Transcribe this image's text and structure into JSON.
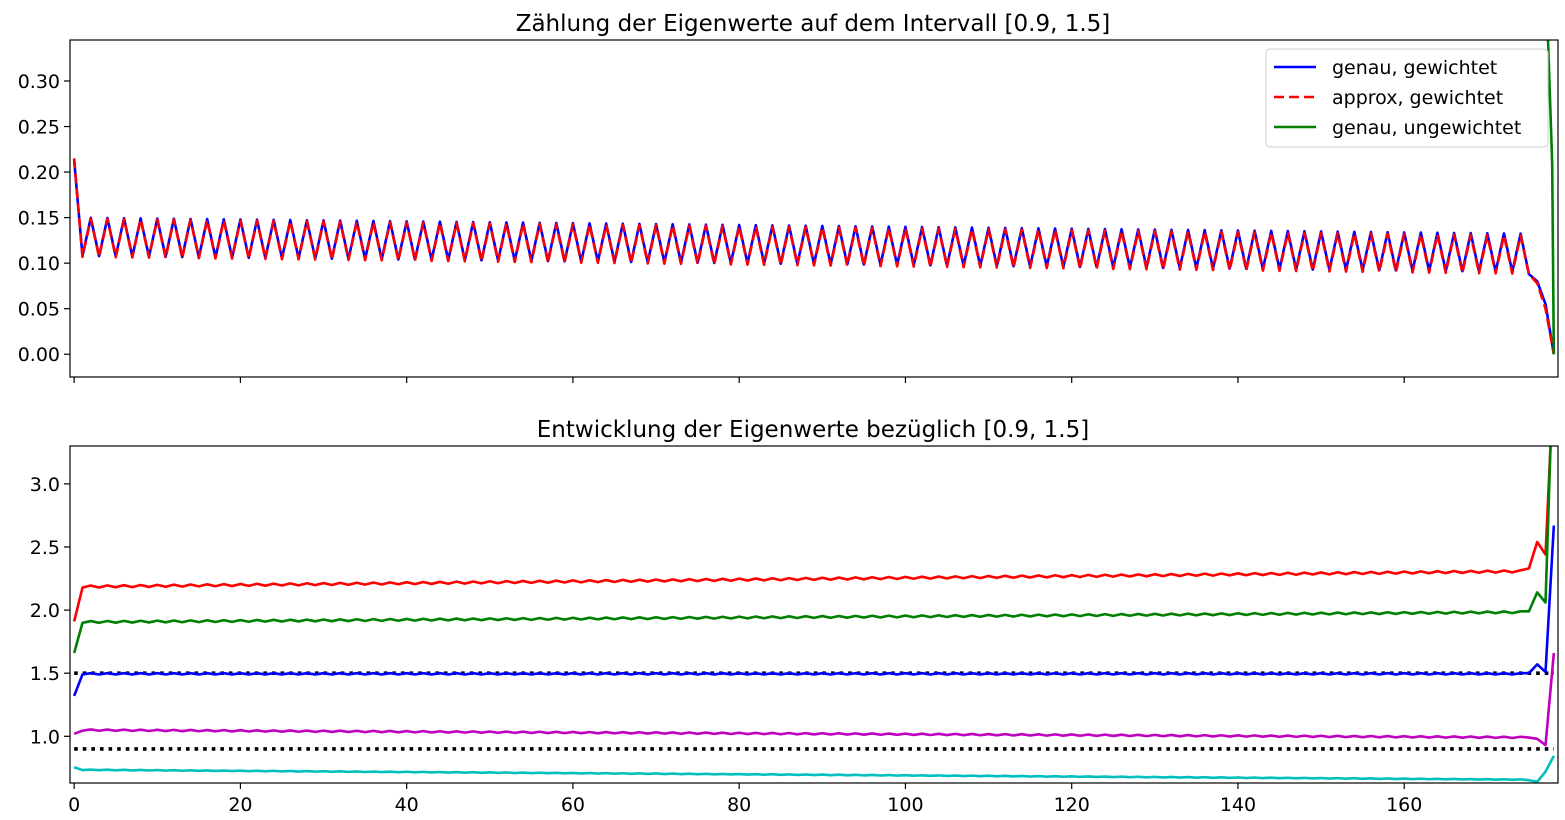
{
  "chart_data": [
    {
      "type": "line",
      "title": "Zählung der Eigenwerte auf dem Intervall [0.9, 1.5]",
      "xlabel": "",
      "ylabel": "",
      "xlim": [
        -0.5,
        178.5
      ],
      "ylim": [
        -0.025,
        0.345
      ],
      "yticks": [
        "0.00",
        "0.05",
        "0.10",
        "0.15",
        "0.20",
        "0.25",
        "0.30"
      ],
      "ytick_values": [
        0,
        0.05,
        0.1,
        0.15,
        0.2,
        0.25,
        0.3
      ],
      "xtick_values": [
        0,
        20,
        40,
        60,
        80,
        100,
        120,
        140,
        160
      ],
      "show_xtick_labels": false,
      "legend_position": "top-right",
      "n_points": 179,
      "series": [
        {
          "name": "genau, gewichtet",
          "color": "#0000ff",
          "dash": "solid",
          "pattern": "zigzag",
          "start": 0.213,
          "high_start": 0.15,
          "high_end": 0.132,
          "low_start": 0.108,
          "low_end": 0.09,
          "tail": [
            [
              175,
              0.088
            ],
            [
              176,
              0.08
            ],
            [
              177,
              0.055
            ],
            [
              178,
              0.0
            ]
          ]
        },
        {
          "name": "approx, gewichtet",
          "color": "#ff0000",
          "dash": "dashed",
          "pattern": "zigzag",
          "start": 0.215,
          "high_start": 0.149,
          "high_end": 0.13,
          "low_start": 0.107,
          "low_end": 0.088,
          "tail": [
            [
              175,
              0.088
            ],
            [
              176,
              0.078
            ],
            [
              177,
              0.05
            ],
            [
              178,
              0.0
            ]
          ]
        },
        {
          "name": "genau, ungewichtet",
          "color": "#008000",
          "dash": "solid",
          "pattern": "spike",
          "points": [
            [
              177.3,
              0.345
            ],
            [
              177.8,
              0.21
            ],
            [
              178,
              0.0
            ]
          ]
        }
      ]
    },
    {
      "type": "line",
      "title": "Entwicklung der Eigenwerte bezüglich [0.9, 1.5]",
      "xlabel": "",
      "ylabel": "",
      "xlim": [
        -0.5,
        178.5
      ],
      "ylim": [
        0.63,
        3.3
      ],
      "yticks": [
        "1.0",
        "1.5",
        "2.0",
        "2.5",
        "3.0"
      ],
      "ytick_values": [
        1.0,
        1.5,
        2.0,
        2.5,
        3.0
      ],
      "xticks": [
        "0",
        "20",
        "40",
        "60",
        "80",
        "100",
        "120",
        "140",
        "160"
      ],
      "xtick_values": [
        0,
        20,
        40,
        60,
        80,
        100,
        120,
        140,
        160
      ],
      "n_points": 179,
      "reference_lines": [
        {
          "y": 1.5,
          "color": "#000000",
          "dash": "dotted"
        },
        {
          "y": 0.9,
          "color": "#000000",
          "dash": "dotted"
        }
      ],
      "series": [
        {
          "color": "#ff0000",
          "start": 1.91,
          "base_start": 2.185,
          "base_end": 2.31,
          "amp": 0.008,
          "tail": [
            [
              175,
              2.33
            ],
            [
              176,
              2.54
            ],
            [
              177,
              2.44
            ],
            [
              177.6,
              3.3
            ]
          ]
        },
        {
          "color": "#008000",
          "start": 1.66,
          "base_start": 1.905,
          "base_end": 1.985,
          "amp": 0.007,
          "tail": [
            [
              175,
              1.99
            ],
            [
              176,
              2.14
            ],
            [
              177,
              2.06
            ],
            [
              177.6,
              3.3
            ]
          ]
        },
        {
          "color": "#0000ff",
          "start": 1.32,
          "base_start": 1.495,
          "base_end": 1.495,
          "amp": 0.005,
          "tail": [
            [
              175,
              1.5
            ],
            [
              176,
              1.57
            ],
            [
              177,
              1.51
            ],
            [
              178,
              2.67
            ]
          ]
        },
        {
          "color": "#bf00bf",
          "start": 1.02,
          "base_start": 1.05,
          "base_end": 0.99,
          "amp": 0.005,
          "tail": [
            [
              175,
              0.99
            ],
            [
              176,
              0.98
            ],
            [
              177,
              0.93
            ],
            [
              178,
              1.66
            ]
          ]
        },
        {
          "color": "#00bfbf",
          "start": 0.755,
          "base_start": 0.735,
          "base_end": 0.655,
          "amp": 0.002,
          "tail": [
            [
              175,
              0.652
            ],
            [
              176,
              0.64
            ],
            [
              177,
              0.72
            ],
            [
              178,
              0.845
            ]
          ]
        }
      ]
    }
  ]
}
